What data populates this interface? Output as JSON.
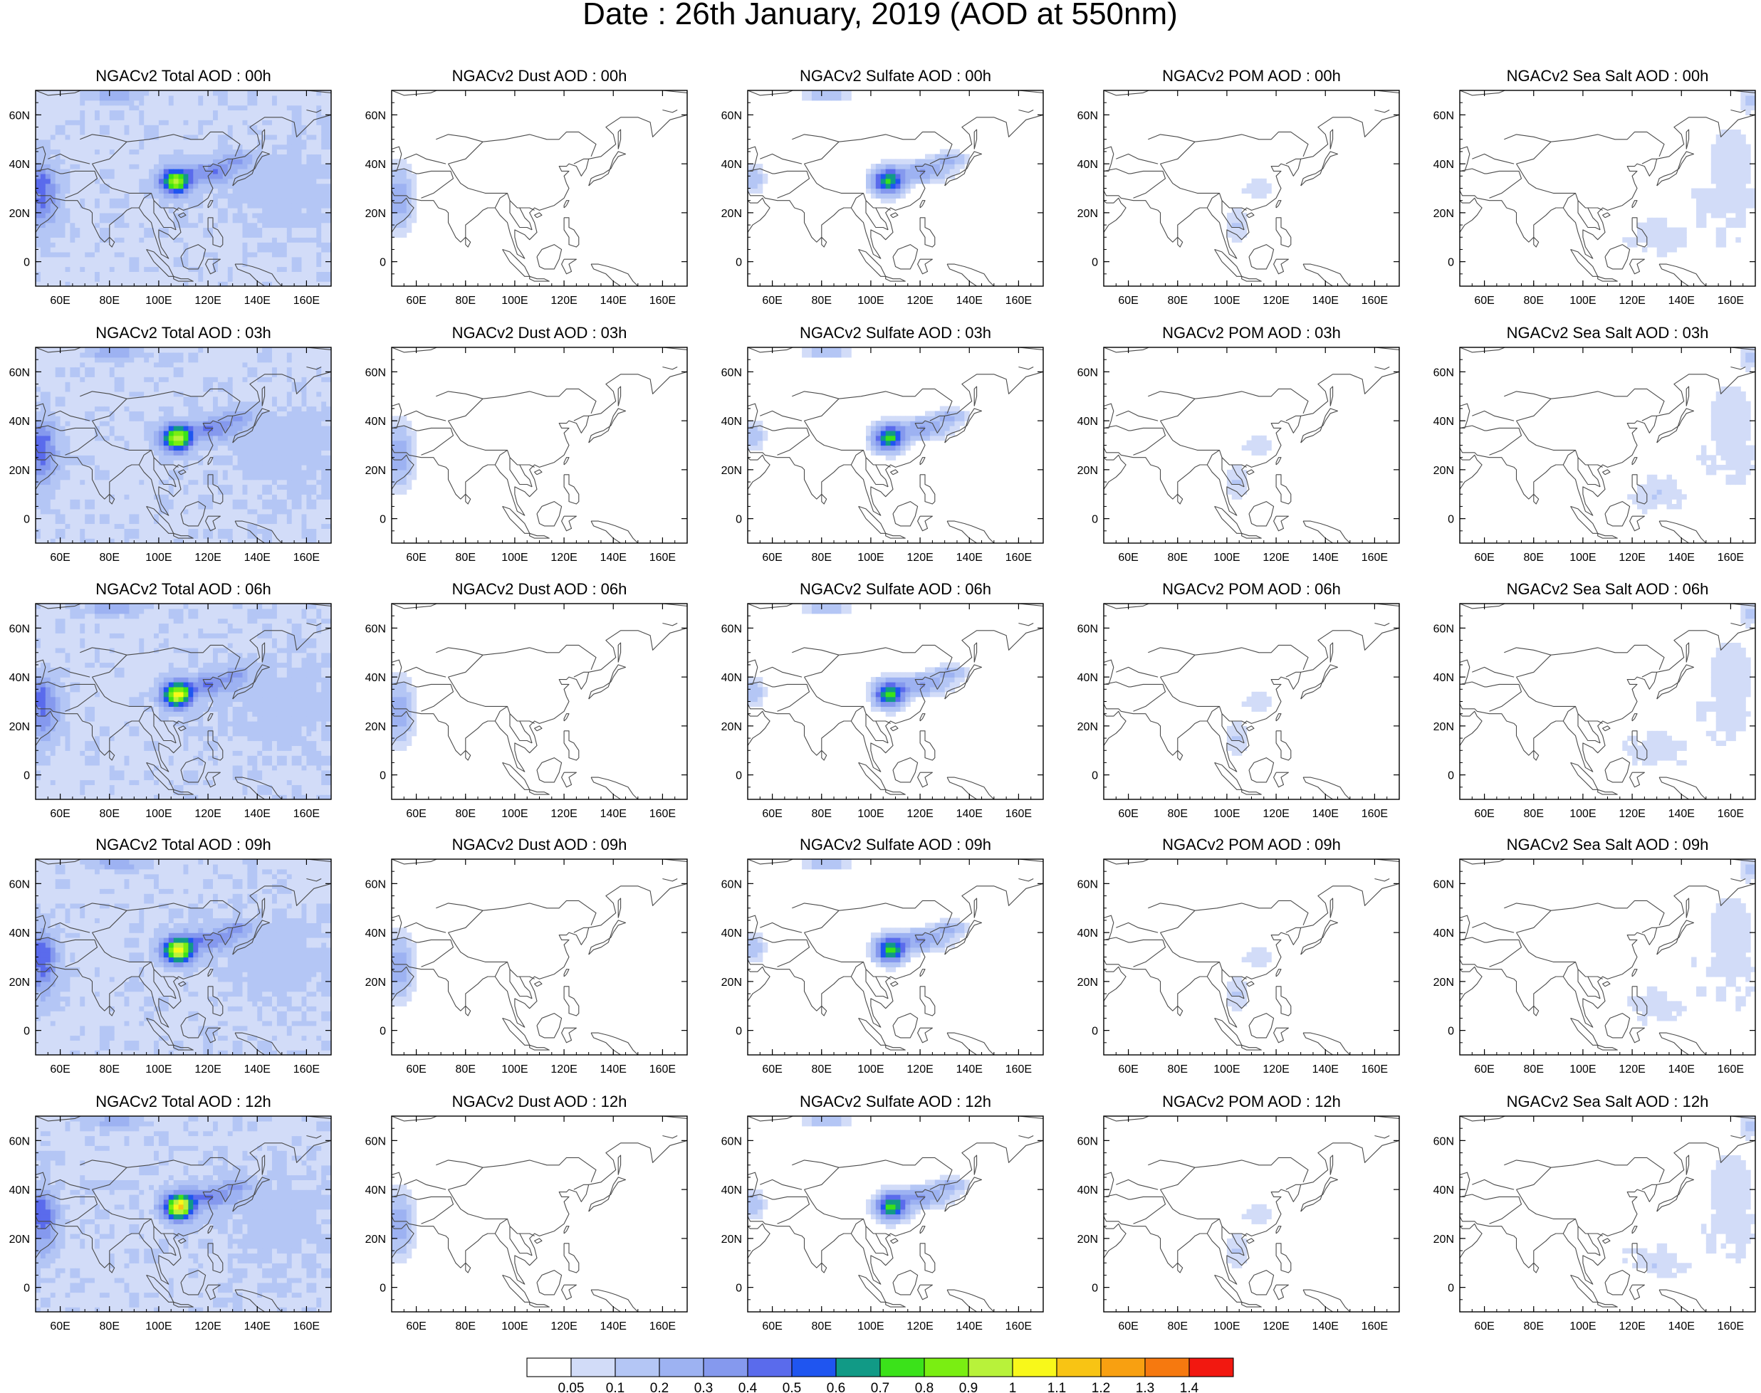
{
  "title": "Date : 26th January, 2019 (AOD at 550nm)",
  "rows": [
    [
      "NGACv2 Total AOD : 00h",
      "NGACv2 Dust AOD : 00h",
      "NGACv2 Sulfate AOD : 00h",
      "NGACv2 POM AOD : 00h",
      "NGACv2 Sea Salt AOD : 00h"
    ],
    [
      "NGACv2 Total AOD : 03h",
      "NGACv2 Dust AOD : 03h",
      "NGACv2 Sulfate AOD : 03h",
      "NGACv2 POM AOD : 03h",
      "NGACv2 Sea Salt AOD : 03h"
    ],
    [
      "NGACv2 Total AOD : 06h",
      "NGACv2 Dust AOD : 06h",
      "NGACv2 Sulfate AOD : 06h",
      "NGACv2 POM AOD : 06h",
      "NGACv2 Sea Salt AOD : 06h"
    ],
    [
      "NGACv2 Total AOD : 09h",
      "NGACv2 Dust AOD : 09h",
      "NGACv2 Sulfate AOD : 09h",
      "NGACv2 POM AOD : 09h",
      "NGACv2 Sea Salt  AOD : 09h"
    ],
    [
      "NGACv2 Total AOD  : 12h",
      "NGACv2 Dust AOD : 12h",
      "NGACv2 Sulfate AOD : 12h",
      "NGACv2 POM  AOD : 12h",
      "NGACv2 Sea Salt  AOD : 12h"
    ]
  ],
  "lon_ticks": [
    "60E",
    "80E",
    "100E",
    "120E",
    "140E",
    "160E"
  ],
  "lat_ticks": [
    "60N",
    "40N",
    "20N",
    "0"
  ],
  "map_extent": {
    "lon": [
      50,
      170
    ],
    "lat": [
      -10,
      70
    ]
  },
  "colorbar": {
    "labels": [
      "0.05",
      "0.1",
      "0.2",
      "0.3",
      "0.4",
      "0.5",
      "0.6",
      "0.7",
      "0.8",
      "0.9",
      "1",
      "1.1",
      "1.2",
      "1.3",
      "1.4"
    ],
    "colors": [
      "#ffffff",
      "#d2dcf8",
      "#b4c6f5",
      "#9db2f2",
      "#8599ee",
      "#5a6bec",
      "#1f55f0",
      "#119a86",
      "#3be21a",
      "#7aee12",
      "#b8f23a",
      "#f8f81a",
      "#f8c414",
      "#f8a011",
      "#f6790f",
      "#f21810"
    ]
  },
  "columns": [
    {
      "species": "total",
      "level": 1.0
    },
    {
      "species": "dust",
      "level": 0.35
    },
    {
      "species": "sulfate",
      "level": 0.75
    },
    {
      "species": "pom",
      "level": 0.3
    },
    {
      "species": "seasalt",
      "level": 0.35
    }
  ]
}
